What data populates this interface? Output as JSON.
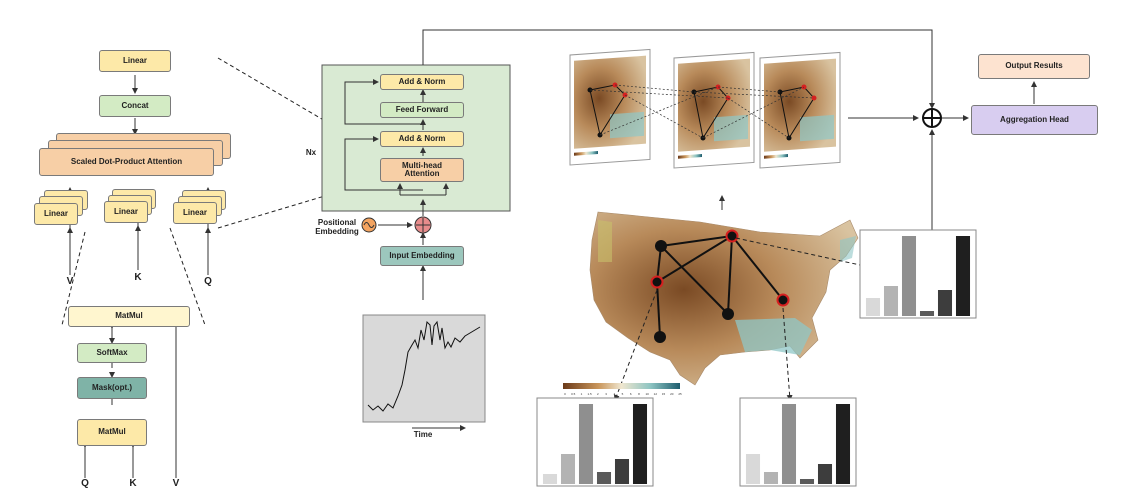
{
  "attention": {
    "linear_top": "Linear",
    "concat": "Concat",
    "sdpa": "Scaled Dot-Product Attention",
    "linear_v": "Linear",
    "linear_k": "Linear",
    "linear_q": "Linear",
    "in_v": "V",
    "in_k": "K",
    "in_q": "Q"
  },
  "sdpa_detail": {
    "matmul_top": "MatMul",
    "softmax": "SoftMax",
    "mask": "Mask(opt.)",
    "matmul_bottom": "MatMul",
    "in_q": "Q",
    "in_k": "K",
    "in_v": "V"
  },
  "encoder": {
    "nx": "Nx",
    "add_norm_top": "Add & Norm",
    "feed_forward": "Feed Forward",
    "add_norm_bottom": "Add & Norm",
    "mha_line1": "Multi-head",
    "mha_line2": "Attention",
    "positional_line1": "Positional",
    "positional_line2": "Embedding",
    "input_embedding": "Input Embedding",
    "time_label": "Time"
  },
  "colorbar_ticks": [
    "0",
    "0.5",
    "1",
    "1.5",
    "2",
    "3",
    "4",
    "5",
    "6",
    "8",
    "10",
    "12",
    "15",
    "20",
    "25"
  ],
  "output": {
    "output_results": "Output Results",
    "aggregation_head": "Aggregation Head"
  },
  "bar_charts": [
    {
      "values": [
        18,
        30,
        80,
        5,
        26,
        80
      ]
    },
    {
      "values": [
        10,
        30,
        80,
        12,
        25,
        80
      ]
    },
    {
      "values": [
        30,
        12,
        80,
        5,
        20,
        80
      ]
    }
  ],
  "colors": {
    "encoder_bg": "#d9ead3",
    "map_brown": "#8b5a2b",
    "map_teal": "#8fc7c7",
    "node_black": "#111111",
    "node_red": "#d62020"
  }
}
